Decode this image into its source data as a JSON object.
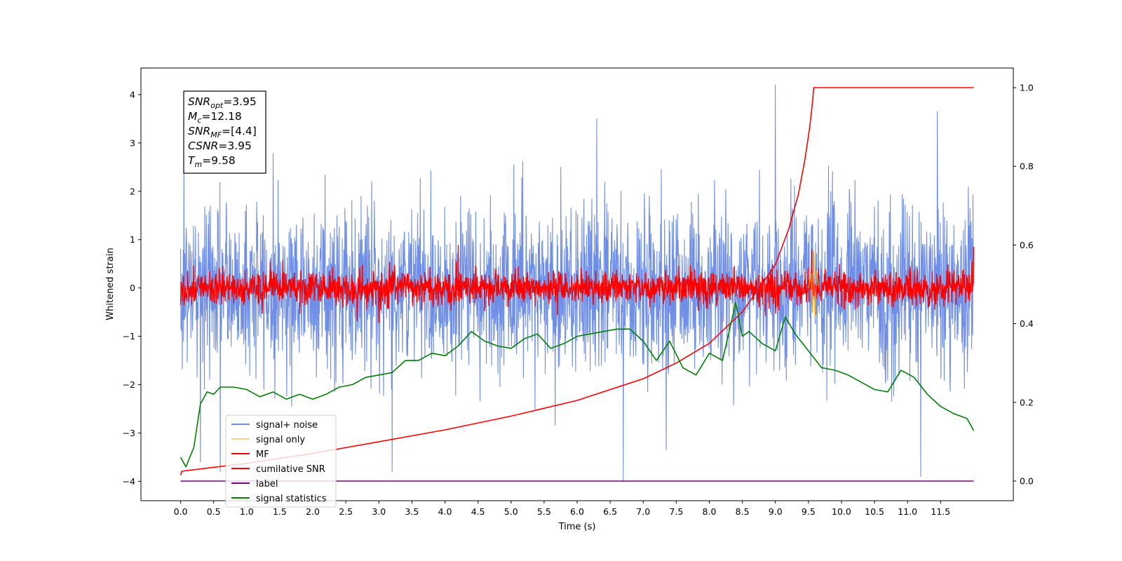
{
  "chart_data": {
    "type": "line",
    "xlabel": "Time (s)",
    "ylabel": "Whitened strain",
    "xlim": [
      -0.6,
      12.6
    ],
    "ylim": [
      -4.4,
      4.55
    ],
    "y2lim": [
      -0.05,
      1.05
    ],
    "x_ticks": [
      0.0,
      0.5,
      1.0,
      1.5,
      2.0,
      2.5,
      3.0,
      3.5,
      4.0,
      4.5,
      5.0,
      5.5,
      6.0,
      6.5,
      7.0,
      7.5,
      8.0,
      8.5,
      9.0,
      9.5,
      10.0,
      10.5,
      11.0,
      11.5
    ],
    "x_tick_labels": [
      "0.0",
      "0.5",
      "1.0",
      "1.5",
      "2.0",
      "2.5",
      "3.0",
      "3.5",
      "4.0",
      "4.5",
      "5.0",
      "5.5",
      "6.0",
      "6.5",
      "7.0",
      "7.5",
      "8.0",
      "8.5",
      "9.0",
      "9.5",
      "10.0",
      "10.5",
      "11.0",
      "11.5"
    ],
    "y_ticks": [
      -4,
      -3,
      -2,
      -1,
      0,
      1,
      2,
      3,
      4
    ],
    "y_tick_labels": [
      "−4",
      "−3",
      "−2",
      "−1",
      "0",
      "1",
      "2",
      "3",
      "4"
    ],
    "y2_ticks": [
      0.0,
      0.2,
      0.4,
      0.6,
      0.8,
      1.0
    ],
    "y2_tick_labels": [
      "0.0",
      "0.2",
      "0.4",
      "0.6",
      "0.8",
      "1.0"
    ],
    "grid": false,
    "legend_position": "lower-left",
    "legend": [
      {
        "name": "signal+ noise",
        "color": "#6f8ee8"
      },
      {
        "name": "signal only",
        "color": "#ffd27f"
      },
      {
        "name": "MF",
        "color": "#ff0000"
      },
      {
        "name": "cumilative SNR",
        "color": "#ff0000"
      },
      {
        "name": "label",
        "color": "#800080"
      },
      {
        "name": "signal statistics",
        "color": "#008000"
      }
    ],
    "series": [
      {
        "name": "signal+ noise",
        "axis": "left",
        "color": "#6f8ee8",
        "style": "noise",
        "x_range": [
          0.0,
          12.0
        ],
        "spread": 1.2,
        "peaks": [
          [
            0.05,
            2.9
          ],
          [
            0.3,
            -3.6
          ],
          [
            0.6,
            -3.8
          ],
          [
            3.2,
            -3.8
          ],
          [
            6.3,
            3.5
          ],
          [
            6.7,
            -4.0
          ],
          [
            7.35,
            -3.35
          ],
          [
            9.0,
            4.2
          ],
          [
            11.2,
            -3.9
          ],
          [
            11.45,
            3.65
          ]
        ]
      },
      {
        "name": "MF",
        "axis": "left",
        "color": "#ff0000",
        "style": "noise",
        "x_range": [
          0.0,
          12.0
        ],
        "spread": 0.24,
        "peaks": [
          [
            0.0,
            0.95
          ],
          [
            0.0,
            -0.35
          ],
          [
            4.2,
            0.88
          ],
          [
            9.55,
            0.8
          ],
          [
            12.0,
            0.85
          ]
        ]
      },
      {
        "name": "signal only",
        "axis": "left",
        "color": "#ffa500",
        "style": "blip",
        "x": [
          9.5,
          9.54,
          9.56,
          9.58,
          9.6,
          9.62,
          9.66
        ],
        "y": [
          0.0,
          0.3,
          -0.5,
          0.75,
          -0.6,
          0.35,
          0.0
        ]
      },
      {
        "name": "cumilative SNR",
        "axis": "right",
        "color": "#ff0000",
        "style": "line",
        "x": [
          0.0,
          0.02,
          1.0,
          2.0,
          3.0,
          4.0,
          5.0,
          6.0,
          7.0,
          7.5,
          8.0,
          8.5,
          9.0,
          9.2,
          9.35,
          9.45,
          9.52,
          9.56,
          9.58,
          10.5,
          11.5,
          12.0
        ],
        "y": [
          0.015,
          0.025,
          0.045,
          0.07,
          0.1,
          0.13,
          0.165,
          0.205,
          0.26,
          0.3,
          0.35,
          0.43,
          0.55,
          0.64,
          0.73,
          0.82,
          0.9,
          0.96,
          1.0,
          1.0,
          1.0,
          1.0
        ]
      },
      {
        "name": "label",
        "axis": "right",
        "color": "#800080",
        "style": "line",
        "x": [
          0.0,
          12.0
        ],
        "y": [
          0.0,
          0.0
        ]
      },
      {
        "name": "signal statistics",
        "axis": "left",
        "color": "#008000",
        "style": "line",
        "x": [
          0.0,
          0.08,
          0.2,
          0.3,
          0.4,
          0.5,
          0.6,
          0.8,
          1.0,
          1.2,
          1.4,
          1.6,
          1.8,
          2.0,
          2.2,
          2.4,
          2.6,
          2.8,
          3.0,
          3.2,
          3.4,
          3.6,
          3.8,
          4.0,
          4.2,
          4.4,
          4.6,
          4.8,
          5.0,
          5.2,
          5.4,
          5.6,
          5.8,
          6.0,
          6.2,
          6.4,
          6.6,
          6.8,
          7.0,
          7.2,
          7.4,
          7.6,
          7.8,
          8.0,
          8.2,
          8.4,
          8.5,
          8.6,
          8.8,
          9.0,
          9.15,
          9.3,
          9.5,
          9.7,
          9.9,
          10.1,
          10.3,
          10.5,
          10.7,
          10.9,
          11.1,
          11.3,
          11.5,
          11.7,
          11.9,
          12.0
        ],
        "y": [
          -3.5,
          -3.7,
          -3.3,
          -2.4,
          -2.15,
          -2.2,
          -2.05,
          -2.05,
          -2.1,
          -2.25,
          -2.15,
          -2.3,
          -2.2,
          -2.3,
          -2.2,
          -2.05,
          -2.0,
          -1.85,
          -1.8,
          -1.75,
          -1.5,
          -1.5,
          -1.35,
          -1.4,
          -1.2,
          -0.9,
          -1.1,
          -1.2,
          -1.25,
          -1.05,
          -0.95,
          -1.25,
          -1.15,
          -1.0,
          -0.95,
          -0.9,
          -0.85,
          -0.85,
          -1.1,
          -1.5,
          -1.1,
          -1.65,
          -1.8,
          -1.35,
          -1.5,
          -0.3,
          -1.0,
          -0.9,
          -1.15,
          -1.3,
          -0.6,
          -0.95,
          -1.3,
          -1.65,
          -1.7,
          -1.8,
          -1.95,
          -2.1,
          -2.15,
          -1.7,
          -1.85,
          -2.2,
          -2.45,
          -2.6,
          -2.7,
          -2.95
        ]
      }
    ],
    "annotation": [
      {
        "base": "SNR",
        "sub": "opt",
        "value": "=3.95"
      },
      {
        "base": "M",
        "sub": "c",
        "value": "=12.18"
      },
      {
        "base": "SNR",
        "sub": "MF",
        "value": "=[4.4]"
      },
      {
        "base": "CSNR",
        "sub": "",
        "value": "=3.95"
      },
      {
        "base": "T",
        "sub": "m",
        "value": "=9.58"
      }
    ]
  }
}
